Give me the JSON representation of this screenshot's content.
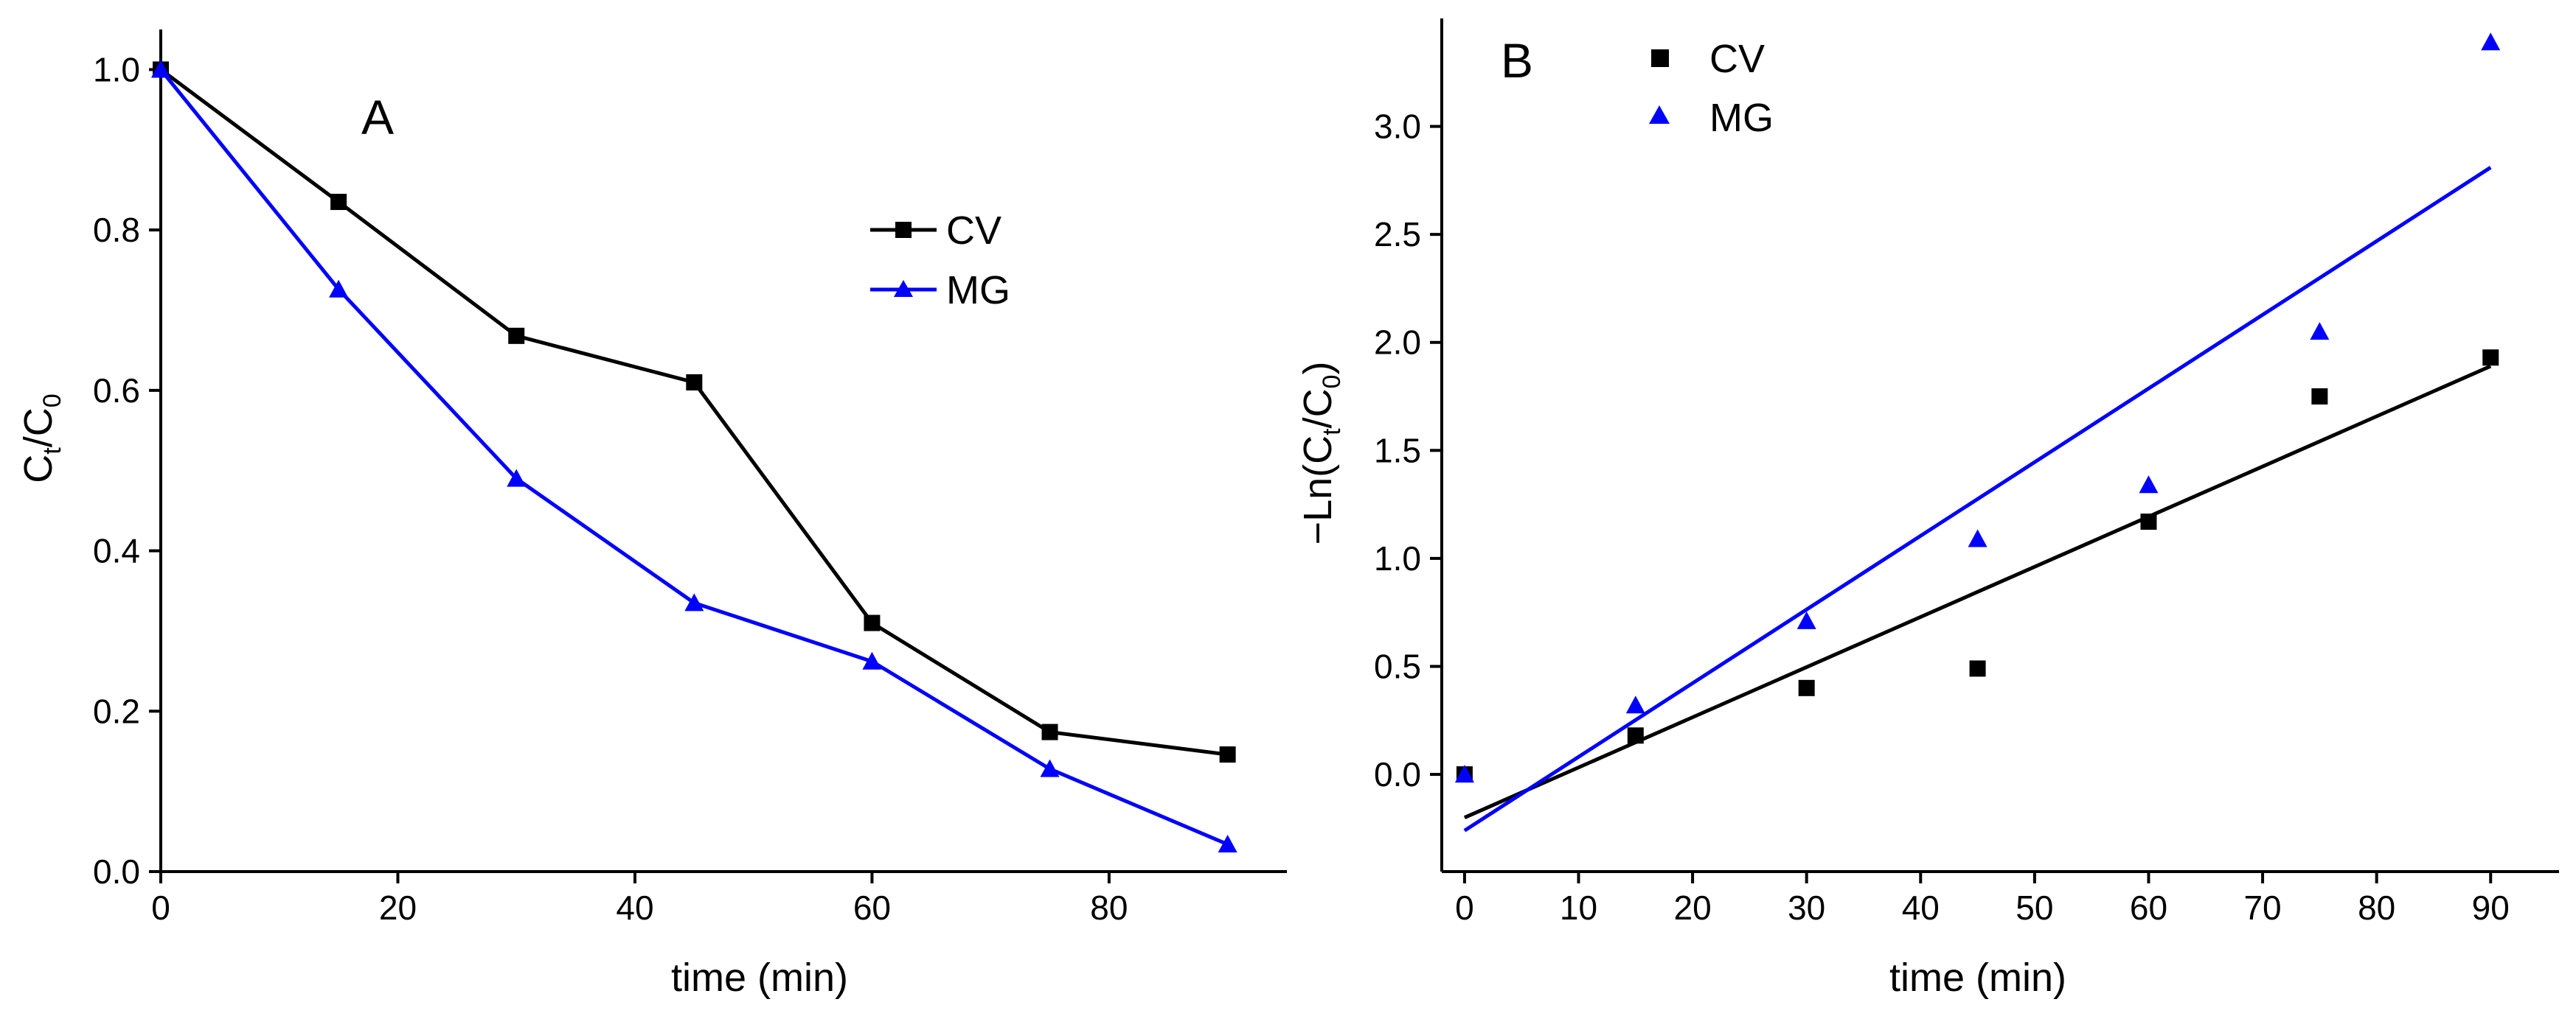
{
  "chart_data": [
    {
      "panel": "A",
      "type": "line",
      "title": "",
      "xlabel": "time (min)",
      "ylabel": {
        "base1": "C",
        "sub1": "t",
        "slash": "/",
        "base2": "C",
        "sub2": "0"
      },
      "xlim": [
        0,
        95
      ],
      "ylim": [
        0.0,
        1.05
      ],
      "xticks": [
        0,
        20,
        40,
        60,
        80
      ],
      "xtick_labels": [
        "0",
        "20",
        "40",
        "60",
        "80"
      ],
      "yticks": [
        0.0,
        0.2,
        0.4,
        0.6,
        0.8,
        1.0
      ],
      "ytick_labels": [
        "0.0",
        "0.2",
        "0.4",
        "0.6",
        "0.8",
        "1.0"
      ],
      "grid": false,
      "legend": "right-center",
      "series": [
        {
          "name": "CV",
          "marker": "square",
          "color": "#000000",
          "x": [
            0,
            15,
            30,
            45,
            60,
            75,
            90
          ],
          "y": [
            1.0,
            0.835,
            0.668,
            0.61,
            0.31,
            0.174,
            0.146
          ]
        },
        {
          "name": "MG",
          "marker": "triangle",
          "color": "#0000ff",
          "x": [
            0,
            15,
            30,
            45,
            60,
            75,
            90
          ],
          "y": [
            1.0,
            0.726,
            0.49,
            0.335,
            0.262,
            0.128,
            0.034
          ]
        }
      ]
    },
    {
      "panel": "B",
      "type": "scatter",
      "title": "",
      "xlabel": "time (min)",
      "ylabel": {
        "prefix": "−Ln(C",
        "sub1": "t",
        "mid": "/C",
        "sub2": "0",
        "suffix": ")"
      },
      "xlim": [
        -2,
        96
      ],
      "ylim": [
        -0.45,
        3.5
      ],
      "xticks": [
        0,
        10,
        20,
        30,
        40,
        50,
        60,
        70,
        80,
        90
      ],
      "xtick_labels": [
        "0",
        "10",
        "20",
        "30",
        "40",
        "50",
        "60",
        "70",
        "80",
        "90"
      ],
      "yticks": [
        0.0,
        0.5,
        1.0,
        1.5,
        2.0,
        2.5,
        3.0
      ],
      "ytick_labels": [
        "0.0",
        "0.5",
        "1.0",
        "1.5",
        "2.0",
        "2.5",
        "3.0"
      ],
      "grid": false,
      "legend": "top-left",
      "series": [
        {
          "name": "CV",
          "marker": "square",
          "color": "#000000",
          "x": [
            0,
            15,
            30,
            45,
            60,
            75,
            90
          ],
          "y": [
            0.0,
            0.18,
            0.4,
            0.49,
            1.17,
            1.75,
            1.93
          ],
          "fit": {
            "x": [
              0,
              90
            ],
            "y": [
              -0.2,
              1.89
            ]
          }
        },
        {
          "name": "MG",
          "marker": "triangle",
          "color": "#0000ff",
          "x": [
            0,
            15,
            30,
            45,
            60,
            75,
            90
          ],
          "y": [
            0.0,
            0.32,
            0.71,
            1.09,
            1.34,
            2.05,
            3.39
          ],
          "fit": {
            "x": [
              0,
              90
            ],
            "y": [
              -0.26,
              2.81
            ]
          }
        }
      ]
    }
  ]
}
